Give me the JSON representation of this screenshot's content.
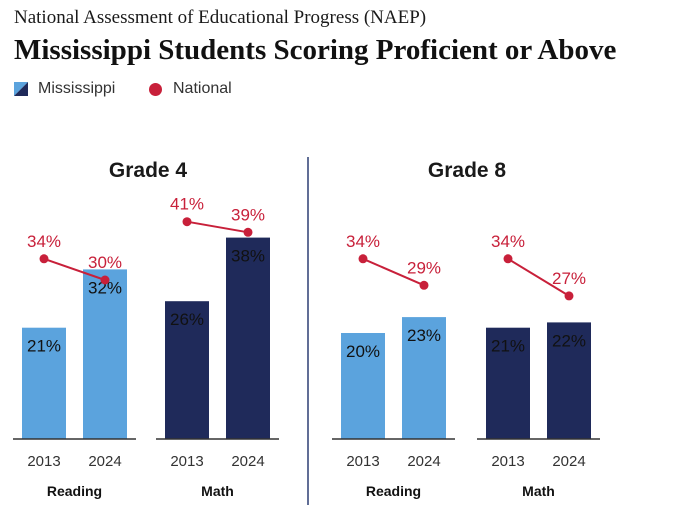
{
  "header": {
    "supertitle": "National Assessment of Educational Progress (NAEP)",
    "title": "Mississippi Students Scoring Proficient or Above"
  },
  "legend": {
    "mississippi_label": "Mississippi",
    "national_label": "National"
  },
  "colors": {
    "reading": "#5ba3dd",
    "math": "#1f2a5a",
    "national": "#c8203a",
    "axis": "#333333",
    "divider": "#2d3f73"
  },
  "chart_data": {
    "type": "bar",
    "panels": [
      {
        "title": "Grade 4",
        "groups": [
          {
            "subject": "Reading",
            "years": [
              "2013",
              "2024"
            ],
            "mississippi": [
              21,
              32
            ],
            "national": [
              34,
              30
            ]
          },
          {
            "subject": "Math",
            "years": [
              "2013",
              "2024"
            ],
            "mississippi": [
              26,
              38
            ],
            "national": [
              41,
              39
            ]
          }
        ]
      },
      {
        "title": "Grade 8",
        "groups": [
          {
            "subject": "Reading",
            "years": [
              "2013",
              "2024"
            ],
            "mississippi": [
              20,
              23
            ],
            "national": [
              34,
              29
            ]
          },
          {
            "subject": "Math",
            "years": [
              "2013",
              "2024"
            ],
            "mississippi": [
              21,
              22
            ],
            "national": [
              34,
              27
            ]
          }
        ]
      }
    ],
    "value_suffix": "%",
    "ylim": [
      0,
      45
    ],
    "grid": false
  }
}
